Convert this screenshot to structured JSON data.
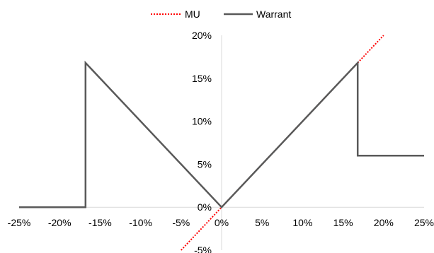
{
  "chart_data": {
    "type": "line",
    "title": "",
    "xlabel": "",
    "ylabel": "",
    "xlim": [
      -0.25,
      0.25
    ],
    "ylim": [
      -0.05,
      0.2
    ],
    "x_ticks": [
      -0.25,
      -0.2,
      -0.15,
      -0.1,
      -0.05,
      0.0,
      0.05,
      0.1,
      0.15,
      0.2,
      0.25
    ],
    "x_tick_labels": [
      "-25%",
      "-20%",
      "-15%",
      "-10%",
      "-5%",
      "0%",
      "5%",
      "10%",
      "15%",
      "20%",
      "25%"
    ],
    "y_ticks": [
      -0.05,
      0.0,
      0.05,
      0.1,
      0.15,
      0.2
    ],
    "y_tick_labels": [
      "-5%",
      "0%",
      "5%",
      "10%",
      "15%",
      "20%"
    ],
    "grid": false,
    "legend_position": "top-center",
    "series": [
      {
        "name": "MU",
        "color": "#ff0000",
        "style": "dotted",
        "x": [
          -0.05,
          0.2
        ],
        "y": [
          -0.05,
          0.2
        ]
      },
      {
        "name": "Warrant",
        "color": "#595959",
        "style": "solid",
        "x": [
          -0.25,
          -0.168,
          -0.168,
          0.0,
          0.168,
          0.168,
          0.25
        ],
        "y": [
          0.0,
          0.0,
          0.168,
          0.0,
          0.168,
          0.06,
          0.06
        ]
      }
    ]
  }
}
